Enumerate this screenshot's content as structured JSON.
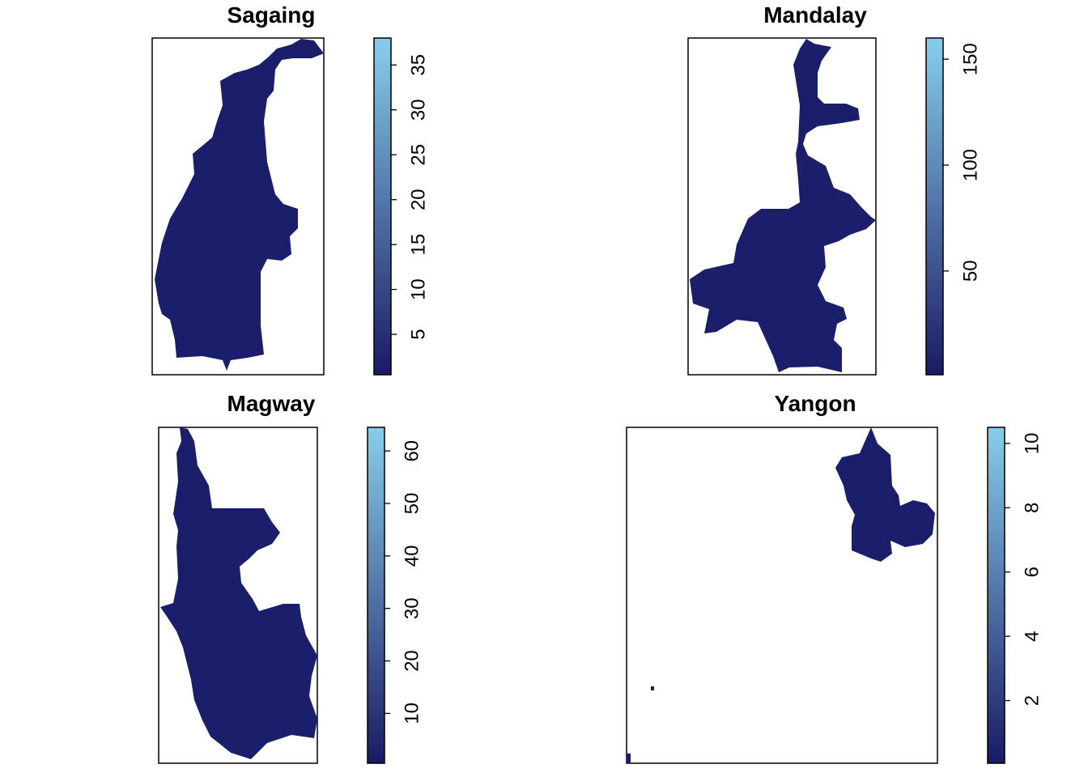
{
  "colors": {
    "background": "#ffffff",
    "region_fill": "#1b1f6b",
    "ramp_low": "#1a1a64",
    "ramp_high": "#87ceeb",
    "frame": "#000000"
  },
  "panels": [
    {
      "key": "sagaing",
      "title": "Sagaing",
      "legend": {
        "min": 0.5,
        "max": 38,
        "ticks": [
          5,
          10,
          15,
          20,
          25,
          30,
          35
        ],
        "tick_labels": [
          "5",
          "10",
          "15",
          "20",
          "25",
          "30",
          "35"
        ]
      }
    },
    {
      "key": "mandalay",
      "title": "Mandalay",
      "legend": {
        "min": 1,
        "max": 160,
        "ticks": [
          50,
          100,
          150
        ],
        "tick_labels": [
          "50",
          "100",
          "150"
        ]
      }
    },
    {
      "key": "magway",
      "title": "Magway",
      "legend": {
        "min": 0.5,
        "max": 64.5,
        "ticks": [
          10,
          20,
          30,
          40,
          50,
          60
        ],
        "tick_labels": [
          "10",
          "20",
          "30",
          "40",
          "50",
          "60"
        ]
      }
    },
    {
      "key": "yangon",
      "title": "Yangon",
      "legend": {
        "min": 0.05,
        "max": 10.5,
        "ticks": [
          2,
          4,
          6,
          8,
          10
        ],
        "tick_labels": [
          "2",
          "4",
          "6",
          "8",
          "10"
        ]
      }
    }
  ]
}
